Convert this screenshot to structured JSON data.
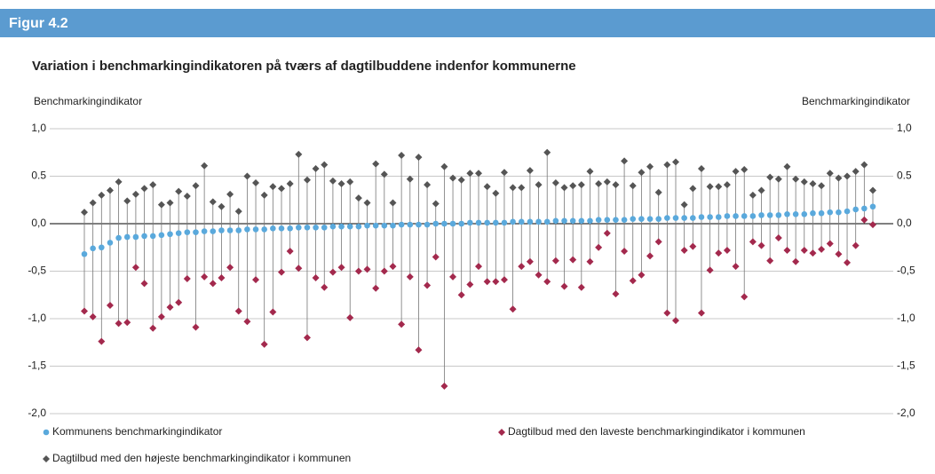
{
  "header": "Figur 4.2",
  "chart_data": {
    "type": "dropline",
    "title": "Variation i benchmarkingindikatoren på tværs af dagtilbuddene indenfor kommunerne",
    "y_label": "Benchmarkingindikator",
    "y2_label": "Benchmarkingindikator",
    "ylim": [
      -2,
      1
    ],
    "yticks": [
      {
        "value": 1,
        "label": "1,0"
      },
      {
        "value": 0.5,
        "label": "0.5"
      },
      {
        "value": 0,
        "label": "0,0"
      },
      {
        "value": -0.5,
        "label": "-0,5"
      },
      {
        "value": -1,
        "label": "-1,0"
      },
      {
        "value": -1.5,
        "label": "-1,5"
      },
      {
        "value": -2,
        "label": "-2,0"
      }
    ],
    "grid": true,
    "series": [
      {
        "name": "Kommunens benchmarkingindikator",
        "color": "#5aa9dc",
        "marker": "circle",
        "values": [
          -0.32,
          -0.26,
          -0.25,
          -0.2,
          -0.15,
          -0.14,
          -0.14,
          -0.13,
          -0.13,
          -0.12,
          -0.11,
          -0.1,
          -0.09,
          -0.09,
          -0.08,
          -0.08,
          -0.07,
          -0.07,
          -0.07,
          -0.06,
          -0.06,
          -0.06,
          -0.05,
          -0.05,
          -0.05,
          -0.04,
          -0.04,
          -0.04,
          -0.04,
          -0.03,
          -0.03,
          -0.03,
          -0.03,
          -0.02,
          -0.02,
          -0.02,
          -0.02,
          -0.01,
          -0.01,
          -0.01,
          -0.01,
          0,
          0,
          0,
          0,
          0.01,
          0.01,
          0.01,
          0.01,
          0.01,
          0.02,
          0.02,
          0.02,
          0.02,
          0.02,
          0.03,
          0.03,
          0.03,
          0.03,
          0.03,
          0.04,
          0.04,
          0.04,
          0.04,
          0.05,
          0.05,
          0.05,
          0.05,
          0.06,
          0.06,
          0.06,
          0.06,
          0.07,
          0.07,
          0.07,
          0.08,
          0.08,
          0.08,
          0.08,
          0.09,
          0.09,
          0.09,
          0.1,
          0.1,
          0.1,
          0.11,
          0.11,
          0.12,
          0.12,
          0.13,
          0.15,
          0.16,
          0.18
        ]
      },
      {
        "name": "Dagtilbud med den laveste benchmarkingindikator i kommunen",
        "color": "#a3294d",
        "marker": "diamond",
        "values": [
          -0.92,
          -0.98,
          -1.24,
          -0.86,
          -1.05,
          -1.04,
          -0.46,
          -0.63,
          -1.1,
          -0.98,
          -0.88,
          -0.83,
          -0.58,
          -1.09,
          -0.56,
          -0.63,
          -0.57,
          -0.46,
          -0.92,
          -1.03,
          -0.59,
          -1.27,
          -0.93,
          -0.51,
          -0.29,
          -0.47,
          -1.2,
          -0.57,
          -0.67,
          -0.51,
          -0.46,
          -0.99,
          -0.5,
          -0.48,
          -0.68,
          -0.5,
          -0.45,
          -1.06,
          -0.56,
          -1.33,
          -0.65,
          -0.35,
          -1.71,
          -0.56,
          -0.75,
          -0.64,
          -0.45,
          -0.61,
          -0.61,
          -0.59,
          -0.9,
          -0.45,
          -0.4,
          -0.54,
          -0.61,
          -0.39,
          -0.66,
          -0.38,
          -0.67,
          -0.4,
          -0.25,
          -0.1,
          -0.74,
          -0.29,
          -0.6,
          -0.54,
          -0.34,
          -0.19,
          -0.94,
          -1.02,
          -0.28,
          -0.24,
          -0.94,
          -0.49,
          -0.31,
          -0.28,
          -0.45,
          -0.77,
          -0.19,
          -0.23,
          -0.39,
          -0.15,
          -0.28,
          -0.4,
          -0.28,
          -0.31,
          -0.27,
          -0.21,
          -0.32,
          -0.41,
          -0.23,
          0.04,
          -0.01
        ]
      },
      {
        "name": "Dagtilbud med den højeste benchmarkingindikator i kommunen",
        "color": "#555555",
        "marker": "diamond",
        "values": [
          0.12,
          0.22,
          0.3,
          0.35,
          0.44,
          0.24,
          0.31,
          0.37,
          0.41,
          0.2,
          0.22,
          0.34,
          0.29,
          0.4,
          0.61,
          0.23,
          0.18,
          0.31,
          0.13,
          0.5,
          0.43,
          0.3,
          0.39,
          0.37,
          0.42,
          0.73,
          0.46,
          0.58,
          0.62,
          0.45,
          0.42,
          0.44,
          0.27,
          0.22,
          0.63,
          0.52,
          0.22,
          0.72,
          0.47,
          0.7,
          0.41,
          0.21,
          0.6,
          0.48,
          0.46,
          0.53,
          0.53,
          0.39,
          0.32,
          0.54,
          0.38,
          0.38,
          0.56,
          0.41,
          0.75,
          0.43,
          0.38,
          0.4,
          0.41,
          0.55,
          0.42,
          0.44,
          0.41,
          0.66,
          0.4,
          0.54,
          0.6,
          0.33,
          0.62,
          0.65,
          0.2,
          0.37,
          0.58,
          0.39,
          0.39,
          0.41,
          0.55,
          0.57,
          0.3,
          0.35,
          0.49,
          0.47,
          0.6,
          0.47,
          0.44,
          0.42,
          0.4,
          0.53,
          0.48,
          0.5,
          0.55,
          0.62,
          0.35
        ]
      }
    ]
  }
}
